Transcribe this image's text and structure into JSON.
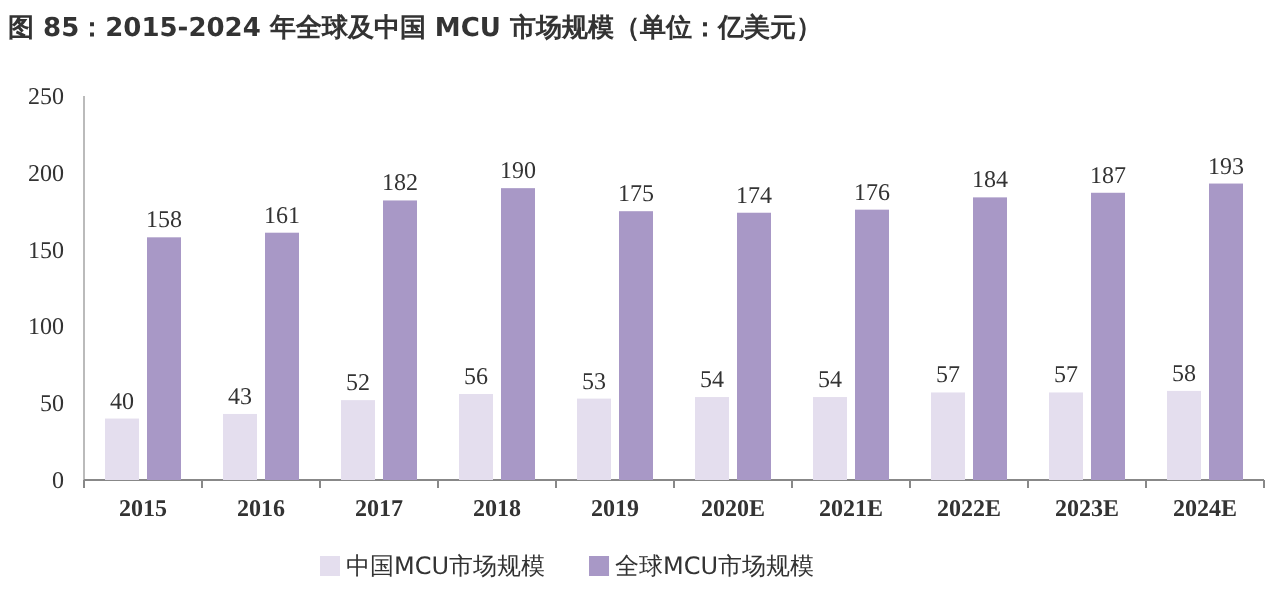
{
  "chart_data": {
    "type": "bar",
    "title": "图 85：2015-2024 年全球及中国 MCU 市场规模（单位：亿美元）",
    "categories": [
      "2015",
      "2016",
      "2017",
      "2018",
      "2019",
      "2020E",
      "2021E",
      "2022E",
      "2023E",
      "2024E"
    ],
    "series": [
      {
        "name": "中国MCU市场规模",
        "color": "#e4deee",
        "values": [
          40,
          43,
          52,
          56,
          53,
          54,
          54,
          57,
          57,
          58
        ]
      },
      {
        "name": "全球MCU市场规模",
        "color": "#a898c6",
        "values": [
          158,
          161,
          182,
          190,
          175,
          174,
          176,
          184,
          187,
          193
        ]
      }
    ],
    "ylim": [
      0,
      250
    ],
    "yticks": [
      0,
      50,
      100,
      150,
      200,
      250
    ],
    "data_labels": true,
    "legend": "bottom",
    "grid": false
  }
}
